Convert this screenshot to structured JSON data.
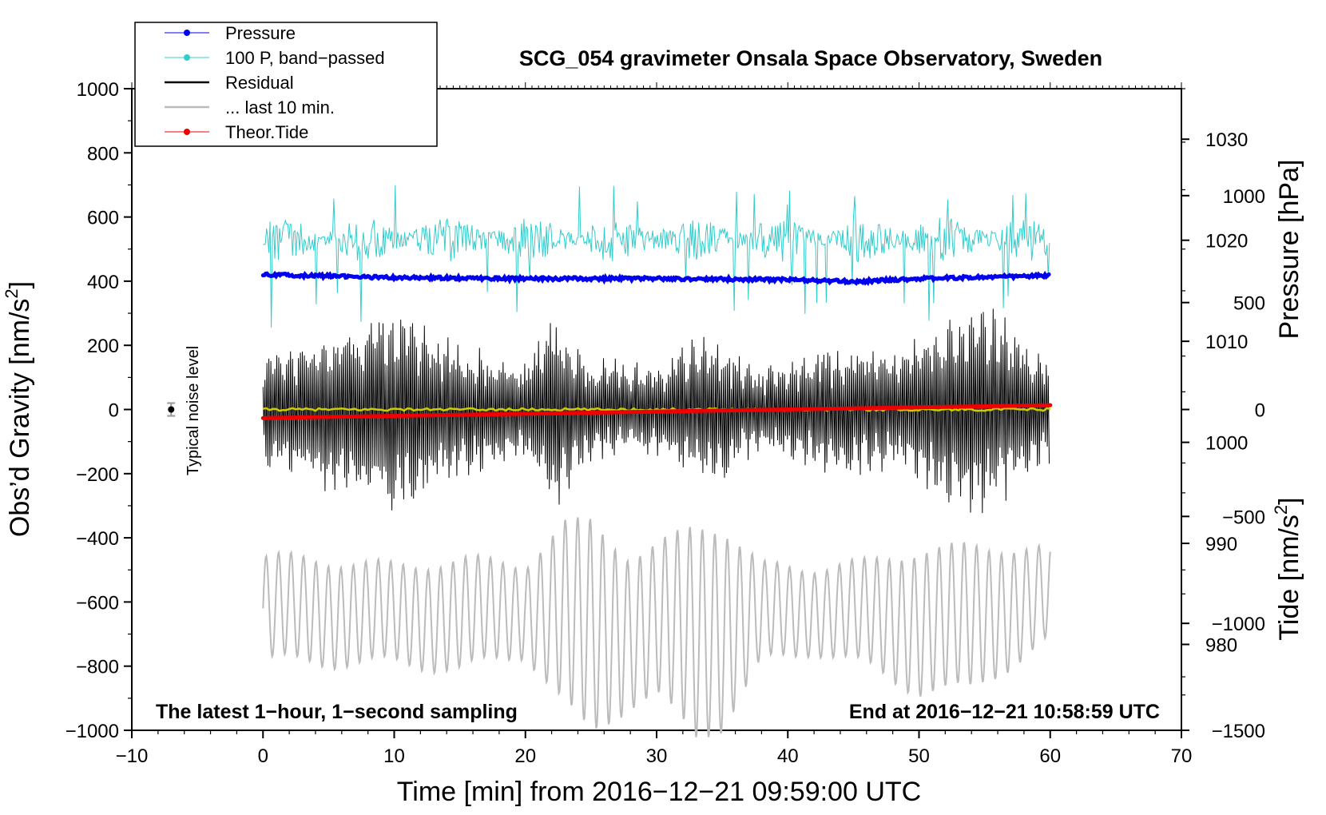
{
  "chart_data": {
    "type": "line",
    "title": "SCG_054 gravimeter Onsala Space Observatory, Sweden",
    "xlabel": "Time [min] from 2016−12−21 09:59:00 UTC",
    "ylabel_left": "Obs’d Gravity [nm/s²]",
    "ylabel_left_main": "Obs’d Gravity [nm/s",
    "ylabel_right_pressure": "Pressure [hPa]",
    "ylabel_right_tide_main": "Tide [nm/s",
    "superscript_two": "2",
    "closing_bracket": "]",
    "xlim": [
      -10,
      70
    ],
    "ylim_left": [
      -1000,
      1000
    ],
    "ylim_pressure": [
      971.5,
      1035
    ],
    "ylim_tide": [
      -1500,
      1500
    ],
    "x_ticks": [
      -10,
      0,
      10,
      20,
      30,
      40,
      50,
      60,
      70
    ],
    "x_tick_labels": [
      "−10",
      "0",
      "10",
      "20",
      "30",
      "40",
      "50",
      "60",
      "70"
    ],
    "y_left_ticks": [
      1000,
      800,
      600,
      400,
      200,
      0,
      -200,
      -400,
      -600,
      -800,
      -1000
    ],
    "y_left_tick_labels": [
      "1000",
      "800",
      "600",
      "400",
      "200",
      "0",
      "−200",
      "−400",
      "−600",
      "−800",
      "−1000"
    ],
    "pressure_ticks": [
      1030,
      1020,
      1010,
      1000,
      990,
      980
    ],
    "pressure_tick_labels": [
      "1030",
      "1020",
      "1010",
      "1000",
      "990",
      "980"
    ],
    "tide_ticks": [
      1000,
      500,
      0,
      -500,
      -1000,
      -1500
    ],
    "tide_tick_labels": [
      "1000",
      "500",
      "0",
      "−500",
      "−1000",
      "−1500"
    ],
    "annotation_left": "The latest 1−hour, 1−second sampling",
    "annotation_right": "End at 2016−12−21 10:58:59 UTC",
    "noise_label": "Typical noise level",
    "noise_marker": {
      "x": -7,
      "y": 0,
      "err": 20
    },
    "legend": [
      {
        "label": "Pressure",
        "color": "#0000ee",
        "style": "line-dot"
      },
      {
        "label": "100 P, band−passed",
        "color": "#33cccc",
        "style": "line-dot"
      },
      {
        "label": "Residual",
        "color": "#000000",
        "style": "line"
      },
      {
        "label": "... last 10 min.",
        "color": "#bbbbbb",
        "style": "line"
      },
      {
        "label": "Theor.Tide",
        "color": "#ee0000",
        "style": "line-dot"
      }
    ],
    "series": [
      {
        "name": "Pressure",
        "axis": "pressure",
        "color": "#0000ee",
        "x": [
          0,
          10,
          20,
          30,
          40,
          45,
          50,
          60
        ],
        "values": [
          1016.6,
          1016.3,
          1016.2,
          1016.2,
          1016.1,
          1015.9,
          1016.2,
          1016.5
        ]
      },
      {
        "name": "100 P, band−passed",
        "axis": "left",
        "color": "#33cccc",
        "x": [
          0,
          60
        ],
        "mean": 530,
        "amplitude": 70,
        "min": 245,
        "max": 700
      },
      {
        "name": "Residual",
        "axis": "left",
        "color": "#000000",
        "x": [
          0,
          10,
          14,
          20,
          22,
          25,
          30,
          34,
          38,
          43,
          48,
          54,
          56,
          60
        ],
        "envelope": [
          190,
          340,
          240,
          150,
          330,
          170,
          150,
          260,
          130,
          220,
          200,
          330,
          320,
          170
        ]
      },
      {
        "name": "Residual mean",
        "axis": "left",
        "color": "#cccc00",
        "x": [
          0,
          60
        ],
        "values": [
          0,
          0
        ]
      },
      {
        "name": "... last 10 min.",
        "axis": "left",
        "color": "#bbbbbb",
        "x": [
          0,
          5,
          10,
          15,
          20,
          23,
          25,
          28,
          30,
          33,
          35,
          38,
          42,
          46,
          50,
          54,
          58,
          60
        ],
        "mean": [
          -620,
          -630,
          -640,
          -640,
          -620,
          -640,
          -680,
          -690,
          -660,
          -690,
          -680,
          -640,
          -620,
          -640,
          -660,
          -650,
          -600,
          -580
        ],
        "envelope": [
          160,
          160,
          150,
          170,
          140,
          280,
          330,
          230,
          230,
          330,
          310,
          150,
          130,
          160,
          220,
          220,
          170,
          140
        ]
      },
      {
        "name": "Theor.Tide",
        "axis": "tide",
        "color": "#ee0000",
        "x": [
          0,
          60
        ],
        "values": [
          -40,
          20
        ]
      }
    ]
  }
}
